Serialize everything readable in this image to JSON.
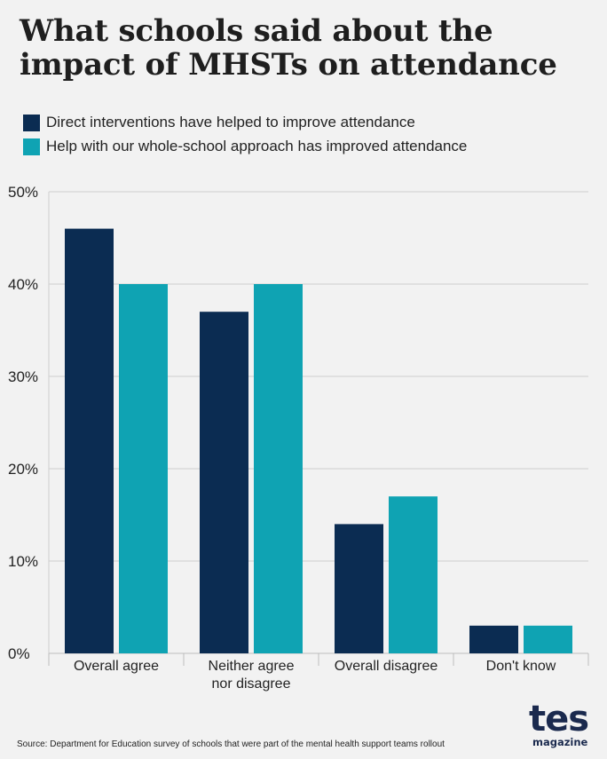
{
  "title": "What schools said about the impact of MHSTs on attendance",
  "colors": {
    "background": "#f2f2f2",
    "series1": "#0b2c52",
    "series2": "#0fa3b3",
    "grid": "#cfcfcf",
    "brand": "#1b2a4e"
  },
  "legend": [
    {
      "label": "Direct interventions have helped to improve attendance",
      "color": "#0b2c52"
    },
    {
      "label": "Help with our whole-school approach has improved attendance",
      "color": "#0fa3b3"
    }
  ],
  "chart_data": {
    "type": "bar",
    "title": "What schools said about the impact of MHSTs on attendance",
    "xlabel": "",
    "ylabel": "",
    "categories": [
      [
        "Overall agree"
      ],
      [
        "Neither agree",
        "nor disagree"
      ],
      [
        "Overall disagree"
      ],
      [
        "Don't know"
      ]
    ],
    "series": [
      {
        "name": "Direct interventions have helped to improve attendance",
        "color": "#0b2c52",
        "values": [
          46,
          37,
          14,
          3
        ]
      },
      {
        "name": "Help with our whole-school approach has improved attendance",
        "color": "#0fa3b3",
        "values": [
          40,
          40,
          17,
          3
        ]
      }
    ],
    "ylim": [
      0,
      50
    ],
    "yticks": [
      0,
      10,
      20,
      30,
      40,
      50
    ],
    "ytick_labels": [
      "0%",
      "10%",
      "20%",
      "30%",
      "40%",
      "50%"
    ],
    "grid": true,
    "legend_position": "top-left"
  },
  "footer": {
    "source": "Source: Department for Education survey of schools that were part of the mental health support teams rollout"
  },
  "logo": {
    "word": "tes",
    "sub": "magazine"
  }
}
